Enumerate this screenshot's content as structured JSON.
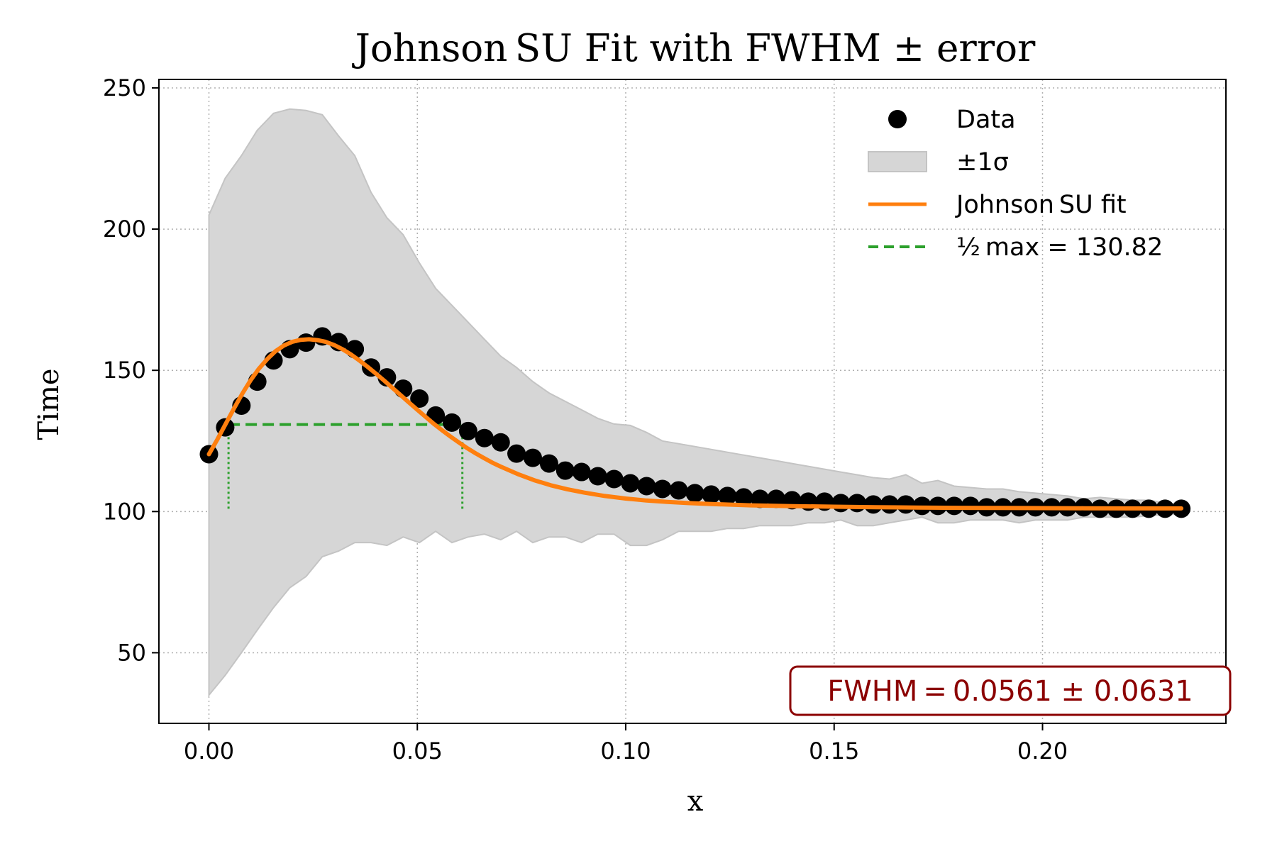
{
  "chart_data": {
    "type": "line",
    "title": "Johnson SU Fit with FWHM ± error",
    "xlabel": "x",
    "ylabel": "Time",
    "xlim": [
      -0.012,
      0.244
    ],
    "ylim": [
      25,
      253
    ],
    "x_ticks": [
      0.0,
      0.05,
      0.1,
      0.15,
      0.2
    ],
    "x_tick_labels": [
      "0.00",
      "0.05",
      "0.10",
      "0.15",
      "0.20"
    ],
    "y_ticks": [
      50,
      100,
      150,
      200,
      250
    ],
    "y_tick_labels": [
      "50",
      "100",
      "150",
      "200",
      "250"
    ],
    "grid": true,
    "legend_position": "top-right",
    "series": [
      {
        "name": "Data",
        "kind": "scatter",
        "color": "#000000",
        "x": [
          0.0,
          0.0039,
          0.0078,
          0.0116,
          0.0155,
          0.0194,
          0.0233,
          0.0272,
          0.0311,
          0.035,
          0.0389,
          0.0427,
          0.0466,
          0.0505,
          0.0544,
          0.0583,
          0.0622,
          0.0661,
          0.07,
          0.0738,
          0.0777,
          0.0816,
          0.0855,
          0.0894,
          0.0933,
          0.0972,
          0.1011,
          0.105,
          0.1088,
          0.1127,
          0.1166,
          0.1205,
          0.1244,
          0.1283,
          0.1322,
          0.1361,
          0.1399,
          0.1438,
          0.1477,
          0.1516,
          0.1555,
          0.1594,
          0.1633,
          0.1672,
          0.1711,
          0.1749,
          0.1788,
          0.1827,
          0.1866,
          0.1905,
          0.1944,
          0.1983,
          0.2022,
          0.206,
          0.2099,
          0.2138,
          0.2177,
          0.2216,
          0.2255,
          0.2294,
          0.2333
        ],
        "y": [
          120.3,
          129.8,
          137.5,
          146.0,
          153.5,
          157.5,
          159.8,
          162.0,
          160.0,
          157.5,
          151.0,
          147.5,
          143.5,
          140.0,
          134.0,
          131.5,
          128.5,
          126.0,
          124.5,
          120.5,
          119.0,
          117.0,
          114.5,
          114.0,
          112.5,
          111.5,
          110.0,
          109.0,
          108.0,
          107.5,
          106.5,
          106.0,
          105.5,
          105.0,
          104.5,
          104.5,
          104.0,
          103.5,
          103.5,
          103.0,
          103.0,
          102.5,
          102.5,
          102.5,
          102.0,
          102.0,
          102.0,
          102.0,
          101.5,
          101.5,
          101.5,
          101.5,
          101.5,
          101.5,
          101.5,
          101.0,
          101.0,
          101.0,
          101.0,
          101.0,
          101.0
        ]
      },
      {
        "name": "±1σ",
        "kind": "band",
        "color": "#d6d6d6",
        "x": [
          0.0,
          0.0039,
          0.0078,
          0.0116,
          0.0155,
          0.0194,
          0.0233,
          0.0272,
          0.0311,
          0.035,
          0.0389,
          0.0427,
          0.0466,
          0.0505,
          0.0544,
          0.0583,
          0.0622,
          0.0661,
          0.07,
          0.0738,
          0.0777,
          0.0816,
          0.0855,
          0.0894,
          0.0933,
          0.0972,
          0.1011,
          0.105,
          0.1088,
          0.1127,
          0.1166,
          0.1205,
          0.1244,
          0.1283,
          0.1322,
          0.1361,
          0.1399,
          0.1438,
          0.1477,
          0.1516,
          0.1555,
          0.1594,
          0.1633,
          0.1672,
          0.1711,
          0.1749,
          0.1788,
          0.1827,
          0.1866,
          0.1905,
          0.1944,
          0.1983,
          0.2022,
          0.206,
          0.2099,
          0.2138,
          0.2177,
          0.2216,
          0.2255,
          0.2294,
          0.2333
        ],
        "upper": [
          205,
          218,
          226,
          235,
          241,
          242.5,
          242,
          240.5,
          233,
          226,
          213,
          204,
          198,
          188,
          179,
          173,
          167,
          161,
          155,
          151,
          146,
          142,
          139,
          136,
          133,
          131,
          130.5,
          128,
          125,
          124,
          123,
          122,
          121,
          120,
          119,
          118,
          117,
          116,
          115,
          114,
          113,
          112,
          111.5,
          113,
          110,
          111,
          109,
          108.5,
          108,
          108,
          107,
          106.5,
          106,
          105.5,
          104.5,
          105,
          104.5,
          104,
          104,
          103,
          102.5
        ],
        "lower": [
          35,
          42,
          50,
          58,
          66,
          73,
          77,
          84,
          86,
          89,
          89,
          88,
          91,
          89,
          93,
          89,
          91,
          92,
          90,
          93,
          89,
          91,
          91,
          89,
          92,
          92,
          88,
          88,
          90,
          93,
          93,
          93,
          94,
          94,
          95,
          95,
          95,
          96,
          96,
          97,
          95,
          95,
          96,
          97,
          98,
          96,
          96,
          97,
          97,
          97,
          96,
          97,
          97,
          97,
          98,
          98,
          98,
          98,
          98.5,
          99,
          99
        ]
      },
      {
        "name": "Johnson SU fit",
        "kind": "line",
        "color": "#ff7f0e",
        "x": [
          0.0,
          0.002,
          0.004,
          0.006,
          0.008,
          0.01,
          0.012,
          0.014,
          0.016,
          0.018,
          0.02,
          0.022,
          0.024,
          0.026,
          0.028,
          0.03,
          0.032,
          0.034,
          0.036,
          0.038,
          0.04,
          0.042,
          0.044,
          0.046,
          0.048,
          0.05,
          0.052,
          0.054,
          0.056,
          0.058,
          0.06,
          0.062,
          0.064,
          0.066,
          0.068,
          0.07,
          0.074,
          0.078,
          0.082,
          0.086,
          0.09,
          0.095,
          0.1,
          0.105,
          0.11,
          0.115,
          0.12,
          0.13,
          0.14,
          0.15,
          0.16,
          0.17,
          0.18,
          0.19,
          0.2,
          0.21,
          0.22,
          0.2333
        ],
        "y": [
          120.3,
          125.5,
          131.0,
          136.5,
          141.7,
          146.5,
          150.6,
          154.0,
          156.8,
          158.8,
          160.1,
          160.8,
          161.0,
          160.7,
          160.1,
          159.0,
          157.5,
          155.7,
          153.6,
          151.3,
          148.9,
          146.4,
          143.8,
          141.2,
          138.6,
          136.0,
          133.5,
          131.0,
          128.7,
          126.5,
          124.4,
          122.4,
          120.6,
          118.9,
          117.3,
          115.9,
          113.3,
          111.1,
          109.3,
          107.9,
          106.7,
          105.5,
          104.6,
          103.9,
          103.4,
          103.0,
          102.7,
          102.2,
          101.9,
          101.7,
          101.5,
          101.4,
          101.3,
          101.25,
          101.2,
          101.15,
          101.1,
          101.1
        ]
      },
      {
        "name": "½ max = 130.82",
        "kind": "hline",
        "color": "#2ca02c",
        "y": 130.82,
        "x_start": 0.0047,
        "x_end": 0.0608
      }
    ],
    "fwhm_markers": {
      "color": "#2ca02c",
      "x": [
        0.0047,
        0.0608
      ],
      "y_bottom": 101.0,
      "y_top": 130.82
    },
    "annotation": {
      "text": "FWHM = 0.0561 ± 0.0631",
      "color": "#8b0000",
      "position": "bottom-right"
    }
  }
}
